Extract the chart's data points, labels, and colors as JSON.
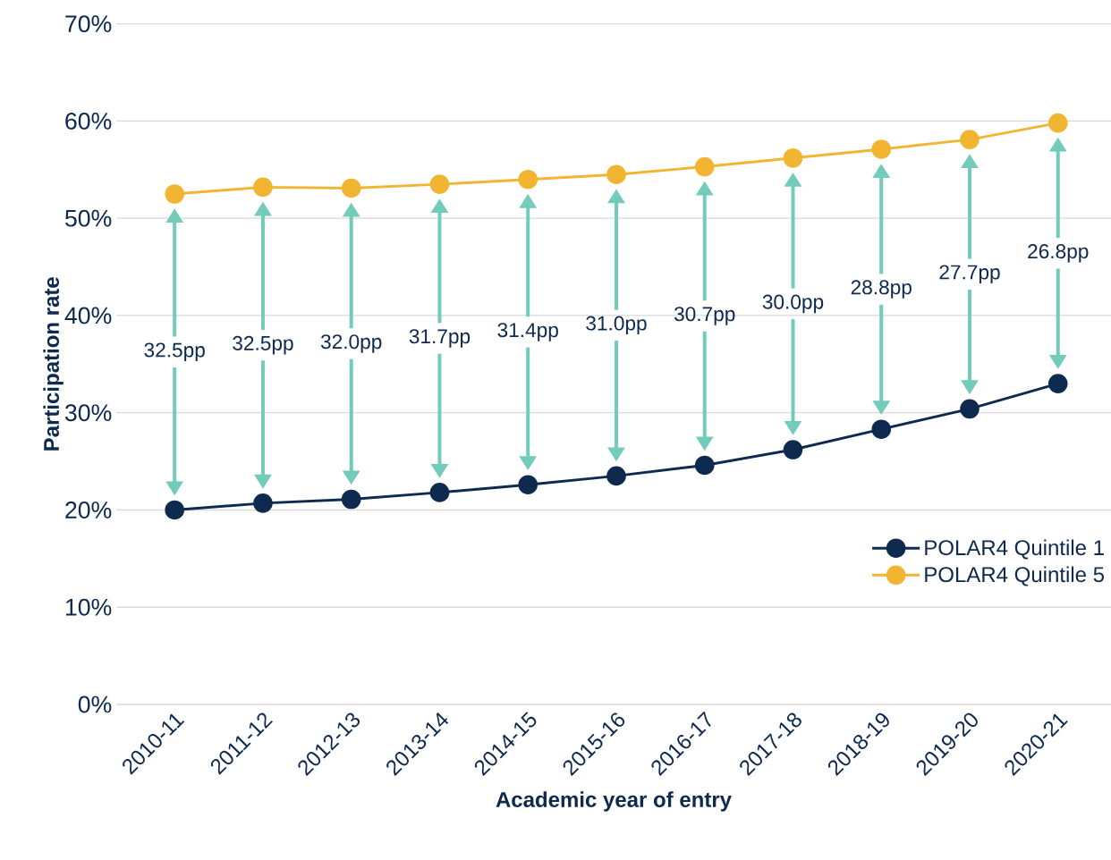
{
  "chart_data": {
    "type": "line",
    "xlabel": "Academic year of entry",
    "ylabel": "Participation rate",
    "categories": [
      "2010-11",
      "2011-12",
      "2012-13",
      "2013-14",
      "2014-15",
      "2015-16",
      "2016-17",
      "2017-18",
      "2018-19",
      "2019-20",
      "2020-21"
    ],
    "series": [
      {
        "name": "POLAR4 Quintile 1",
        "color": "#0f2a4f",
        "values": [
          20.0,
          20.7,
          21.1,
          21.8,
          22.6,
          23.5,
          24.6,
          26.2,
          28.3,
          30.4,
          33.0
        ]
      },
      {
        "name": "POLAR4 Quintile 5",
        "color": "#f2b531",
        "values": [
          52.5,
          53.2,
          53.1,
          53.5,
          54.0,
          54.5,
          55.3,
          56.2,
          57.1,
          58.1,
          59.8
        ]
      }
    ],
    "ylim": [
      0,
      70
    ],
    "yticks": [
      {
        "value": 0,
        "label": "0%"
      },
      {
        "value": 10,
        "label": "10%"
      },
      {
        "value": 20,
        "label": "20%"
      },
      {
        "value": 30,
        "label": "30%"
      },
      {
        "value": 40,
        "label": "40%"
      },
      {
        "value": 50,
        "label": "50%"
      },
      {
        "value": 60,
        "label": "60%"
      },
      {
        "value": 70,
        "label": "70%"
      }
    ],
    "grid": "y",
    "legend": "bottom right",
    "marker": "circle",
    "line_style": "solid",
    "annotations": [
      "32.5pp",
      "32.5pp",
      "32.0pp",
      "31.7pp",
      "31.4pp",
      "31.0pp",
      "30.7pp",
      "30.0pp",
      "28.8pp",
      "27.7pp",
      "26.8pp"
    ]
  }
}
